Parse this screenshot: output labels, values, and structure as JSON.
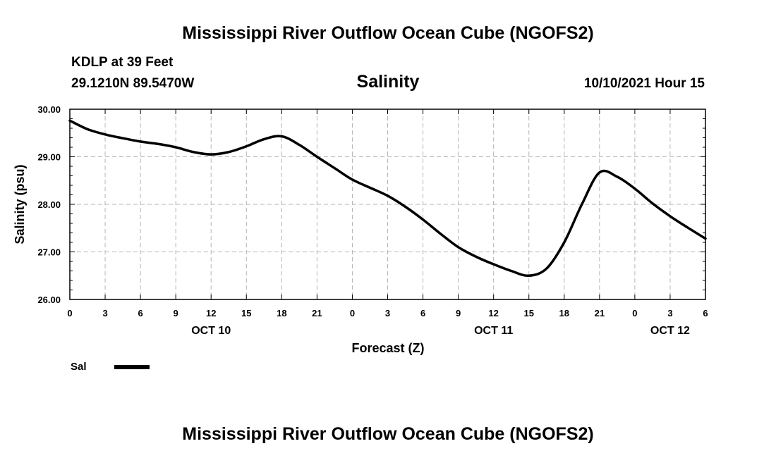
{
  "header": {
    "title_top": "Mississippi River Outflow Ocean Cube (NGOFS2)",
    "title_bottom": "Mississippi River Outflow Ocean Cube (NGOFS2)",
    "station": "KDLP at 39 Feet",
    "location": "29.1210N  89.5470W",
    "variable": "Salinity",
    "timestamp": "10/10/2021 Hour 15"
  },
  "legend": {
    "label": "Sal"
  },
  "colors": {
    "line": "#000000",
    "grid": "#b4b4b4",
    "background": "#ffffff"
  },
  "chart_data": {
    "type": "line",
    "title": "Salinity",
    "xlabel": "Forecast (Z)",
    "ylabel": "Salinity (psu)",
    "xlim": [
      0,
      54
    ],
    "ylim": [
      26.0,
      30.0
    ],
    "x_tick_values": [
      0,
      3,
      6,
      9,
      12,
      15,
      18,
      21,
      24,
      27,
      30,
      33,
      36,
      39,
      42,
      45,
      48,
      51,
      54
    ],
    "x_tick_labels": [
      "0",
      "3",
      "6",
      "9",
      "12",
      "15",
      "18",
      "21",
      "0",
      "3",
      "6",
      "9",
      "12",
      "15",
      "18",
      "21",
      "0",
      "3",
      "6"
    ],
    "y_tick_values": [
      26.0,
      27.0,
      28.0,
      29.0,
      30.0
    ],
    "y_tick_labels": [
      "26.00",
      "27.00",
      "28.00",
      "29.00",
      "30.00"
    ],
    "date_labels": [
      {
        "label": "OCT 10",
        "at": 12
      },
      {
        "label": "OCT 11",
        "at": 36
      },
      {
        "label": "OCT 12",
        "at": 51
      }
    ],
    "grid": true,
    "series": [
      {
        "name": "Sal",
        "x": [
          0,
          1.5,
          3,
          4.5,
          6,
          7.5,
          9,
          10.5,
          12,
          13.5,
          15,
          16.5,
          18,
          19.5,
          21,
          22.5,
          24,
          25.5,
          27,
          28.5,
          30,
          31.5,
          33,
          34.5,
          36,
          37.5,
          39,
          40.5,
          42,
          43.5,
          45,
          46.5,
          48,
          49.5,
          51,
          52.5,
          54
        ],
        "values": [
          29.76,
          29.58,
          29.47,
          29.39,
          29.32,
          29.27,
          29.2,
          29.1,
          29.05,
          29.1,
          29.22,
          29.37,
          29.43,
          29.25,
          29.0,
          28.76,
          28.52,
          28.35,
          28.18,
          27.95,
          27.68,
          27.38,
          27.1,
          26.9,
          26.74,
          26.6,
          26.5,
          26.65,
          27.2,
          28.0,
          28.67,
          28.58,
          28.33,
          28.02,
          27.75,
          27.51,
          27.28
        ]
      }
    ]
  }
}
